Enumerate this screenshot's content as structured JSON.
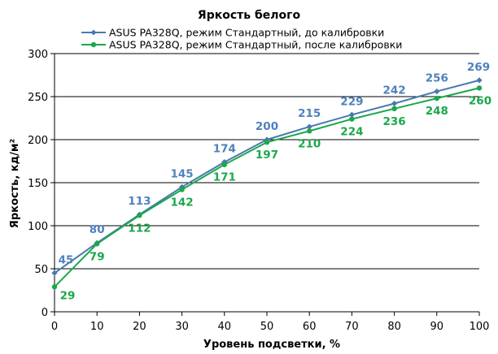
{
  "chart_data": {
    "type": "line",
    "title": "Яркость белого",
    "xlabel": "Уровень подсветки, %",
    "ylabel": "Яркость, кд/м²",
    "x": [
      0,
      10,
      20,
      30,
      40,
      50,
      60,
      70,
      80,
      90,
      100
    ],
    "xlim": [
      0,
      100
    ],
    "ylim": [
      0,
      300
    ],
    "x_ticks": [
      "0",
      "10",
      "20",
      "30",
      "40",
      "50",
      "60",
      "70",
      "80",
      "90",
      "100"
    ],
    "y_ticks": [
      "0",
      "50",
      "100",
      "150",
      "200",
      "250",
      "300"
    ],
    "grid": "horizontal",
    "legend_position": "top",
    "series": [
      {
        "name": "ASUS PA328Q, режим Стандартный, до калибровки",
        "color": "#4a78b0",
        "label_color": "#4f81bd",
        "marker": "diamond",
        "values": [
          45,
          80,
          113,
          145,
          174,
          200,
          215,
          229,
          242,
          256,
          269
        ],
        "labels": [
          "45",
          "80",
          "113",
          "145",
          "174",
          "200",
          "215",
          "229",
          "242",
          "256",
          "269"
        ]
      },
      {
        "name": "ASUS PA328Q, режим Стандартный, после калибровки",
        "color": "#1aa84a",
        "label_color": "#1aa84a",
        "marker": "circle",
        "values": [
          29,
          79,
          112,
          142,
          171,
          197,
          210,
          224,
          236,
          248,
          260
        ],
        "labels": [
          "29",
          "79",
          "112",
          "142",
          "171",
          "197",
          "210",
          "224",
          "236",
          "248",
          "260"
        ]
      }
    ]
  }
}
